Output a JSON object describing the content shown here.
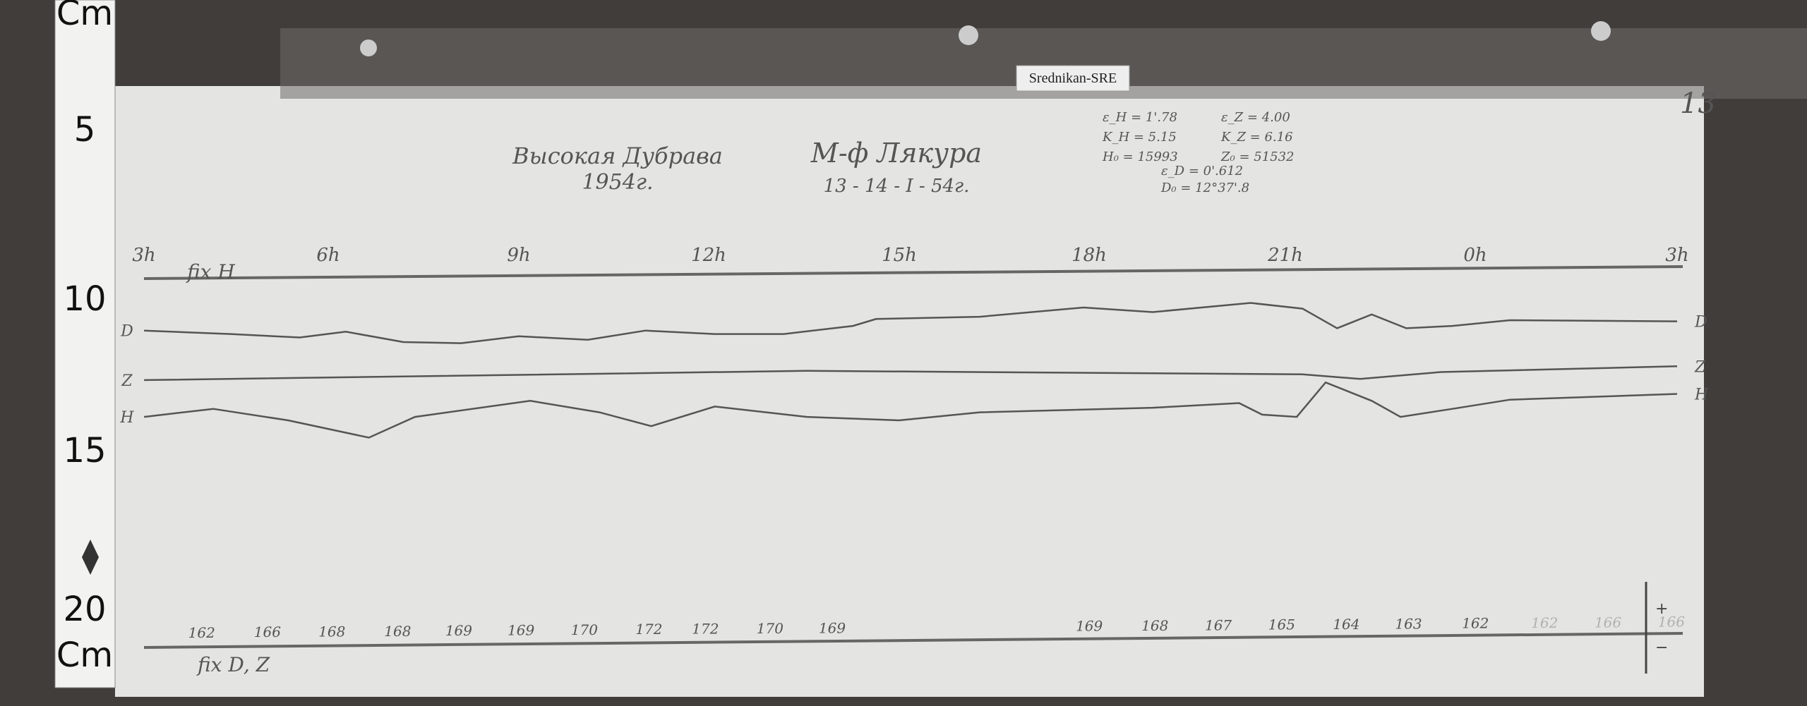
{
  "ruler": {
    "labels": [
      "Cm",
      "5",
      "10",
      "15",
      "20",
      "Cm"
    ]
  },
  "tag": "Srednikan-SRE",
  "sheet_number": "13",
  "station": {
    "name": "Высокая Дубрава",
    "year": "1954г."
  },
  "magnetometer": {
    "name": "М-ф Лякура",
    "date": "13 - 14 - I - 54г."
  },
  "constants": [
    "ε_H = 1'.78",
    "ε_Z = 4.00",
    "K_H = 5.15",
    "K_Z = 6.16",
    "H₀ = 15993",
    "Z₀ = 51532",
    "ε_D = 0'.612",
    "D₀ = 12°37'.8"
  ],
  "hours": [
    "3h",
    "6h",
    "9h",
    "12h",
    "15h",
    "18h",
    "21h",
    "0h",
    "3h"
  ],
  "fix_top": "fix H",
  "fix_bottom": "fix D, Z",
  "trace_labels": {
    "D": "D",
    "Z": "Z",
    "H": "H"
  },
  "temperatures": [
    "162",
    "166",
    "168",
    "168",
    "169",
    "169",
    "170",
    "172",
    "172",
    "170",
    "169",
    "169",
    "168",
    "167",
    "165",
    "164",
    "163",
    "162",
    "162",
    "166",
    "166"
  ],
  "scale_signs": [
    "+",
    "−"
  ]
}
